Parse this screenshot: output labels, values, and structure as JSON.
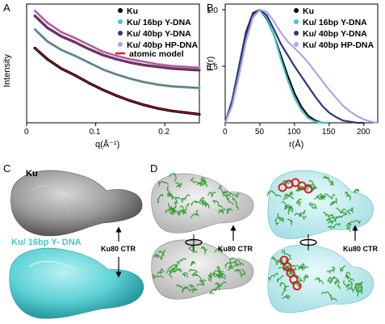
{
  "panels": {
    "A": "A",
    "B": "B",
    "C": "C",
    "D": "D"
  },
  "colors": {
    "ku": "#000000",
    "ku16": "#3ec9cd",
    "ku40y": "#33337f",
    "ku40hp": "#a9a6e8",
    "model": "#e0202a",
    "surface_gray": "#8a8a8a",
    "surface_cyan": "#5ed2d6",
    "protein": "#2a9a2a",
    "dna": "#d81e1e"
  },
  "chart_data": [
    {
      "panel": "A",
      "type": "line",
      "xlabel": "q(Å⁻¹)",
      "ylabel": "Intensity",
      "xlim": [
        0,
        0.25
      ],
      "xticks": [
        "0",
        "0.1",
        "0.2"
      ],
      "yscale": "log (offset curves)",
      "legend_position": "top-right",
      "legend": [
        "Ku",
        "Ku/ 16bp Y-DNA",
        "Ku/ 40bp Y-DNA",
        "Ku/ 40bp HP-DNA",
        "atomic model"
      ],
      "series": [
        {
          "name": "Ku/ 40bp HP-DNA",
          "x": [
            0.012,
            0.03,
            0.05,
            0.07,
            0.09,
            0.11,
            0.13,
            0.15,
            0.17,
            0.19,
            0.21,
            0.23,
            0.25
          ],
          "y": [
            7.6,
            6.9,
            6.35,
            6.0,
            5.6,
            5.2,
            4.95,
            4.75,
            4.6,
            4.45,
            4.35,
            4.3,
            4.25
          ]
        },
        {
          "name": "Ku/ 40bp Y-DNA",
          "x": [
            0.012,
            0.03,
            0.05,
            0.07,
            0.09,
            0.11,
            0.13,
            0.15,
            0.17,
            0.19,
            0.21,
            0.23,
            0.25
          ],
          "y": [
            7.3,
            6.6,
            6.1,
            5.75,
            5.35,
            5.0,
            4.75,
            4.55,
            4.4,
            4.3,
            4.2,
            4.15,
            4.1
          ]
        },
        {
          "name": "Ku/ 16bp Y-DNA",
          "x": [
            0.012,
            0.03,
            0.05,
            0.07,
            0.09,
            0.11,
            0.13,
            0.15,
            0.17,
            0.19,
            0.21,
            0.23,
            0.25
          ],
          "y": [
            6.5,
            5.8,
            5.3,
            4.95,
            4.55,
            4.15,
            3.85,
            3.6,
            3.4,
            3.25,
            3.15,
            3.1,
            3.05
          ]
        },
        {
          "name": "Ku",
          "x": [
            0.012,
            0.03,
            0.05,
            0.07,
            0.09,
            0.11,
            0.13,
            0.15,
            0.17,
            0.19,
            0.21,
            0.23,
            0.25
          ],
          "y": [
            5.4,
            4.75,
            4.2,
            3.8,
            3.35,
            2.95,
            2.6,
            2.3,
            2.05,
            1.85,
            1.7,
            1.6,
            1.5
          ]
        }
      ]
    },
    {
      "panel": "B",
      "type": "line",
      "xlabel": "r(Å)",
      "ylabel": "P(r)",
      "xlim": [
        0,
        220
      ],
      "ylim": [
        0,
        1.05
      ],
      "xticks": [
        "0",
        "50",
        "100",
        "150",
        "200"
      ],
      "yticks": [
        "0.5",
        "1.0"
      ],
      "legend_position": "top-right",
      "legend": [
        "Ku",
        "Ku/ 16bp Y-DNA",
        "Ku/ 40bp Y-DNA",
        "Ku/ 40bp HP-DNA"
      ],
      "series": [
        {
          "name": "Ku",
          "r": [
            0,
            10,
            20,
            30,
            40,
            50,
            60,
            70,
            80,
            90,
            100,
            110,
            120,
            130,
            140,
            150
          ],
          "p": [
            0,
            0.2,
            0.5,
            0.8,
            0.97,
            1.0,
            0.92,
            0.78,
            0.6,
            0.42,
            0.26,
            0.14,
            0.06,
            0.02,
            0.0,
            0
          ]
        },
        {
          "name": "Ku/ 16bp Y-DNA",
          "r": [
            0,
            10,
            20,
            30,
            40,
            50,
            60,
            70,
            80,
            90,
            100,
            110,
            120,
            130,
            140,
            150
          ],
          "p": [
            0,
            0.19,
            0.48,
            0.78,
            0.96,
            1.0,
            0.93,
            0.78,
            0.57,
            0.38,
            0.22,
            0.11,
            0.04,
            0.01,
            0,
            0
          ]
        },
        {
          "name": "Ku/ 40bp Y-DNA",
          "r": [
            0,
            10,
            20,
            30,
            40,
            50,
            60,
            70,
            80,
            90,
            100,
            110,
            120,
            130,
            140,
            150,
            160,
            170,
            180,
            190,
            200
          ],
          "p": [
            0,
            0.18,
            0.47,
            0.78,
            0.96,
            1.0,
            0.95,
            0.83,
            0.7,
            0.6,
            0.5,
            0.41,
            0.32,
            0.23,
            0.15,
            0.09,
            0.05,
            0.02,
            0.01,
            0,
            0
          ]
        },
        {
          "name": "Ku/ 40bp HP-DNA",
          "r": [
            0,
            10,
            20,
            30,
            40,
            50,
            60,
            70,
            80,
            90,
            100,
            110,
            120,
            130,
            140,
            150,
            160,
            170,
            180,
            190,
            200,
            210,
            220
          ],
          "p": [
            0,
            0.15,
            0.42,
            0.72,
            0.93,
            1.0,
            0.98,
            0.9,
            0.8,
            0.72,
            0.66,
            0.6,
            0.53,
            0.45,
            0.37,
            0.29,
            0.22,
            0.15,
            0.1,
            0.06,
            0.03,
            0.01,
            0
          ]
        }
      ]
    }
  ],
  "panelC": {
    "top_label": "Ku",
    "bottom_label": "Ku/  16bp Y- DNA",
    "arrow_label": "Ku80 CTR"
  },
  "panelD": {
    "arrow_label_left": "Ku80 CTR",
    "arrow_label_right": "Ku80 CTR"
  }
}
